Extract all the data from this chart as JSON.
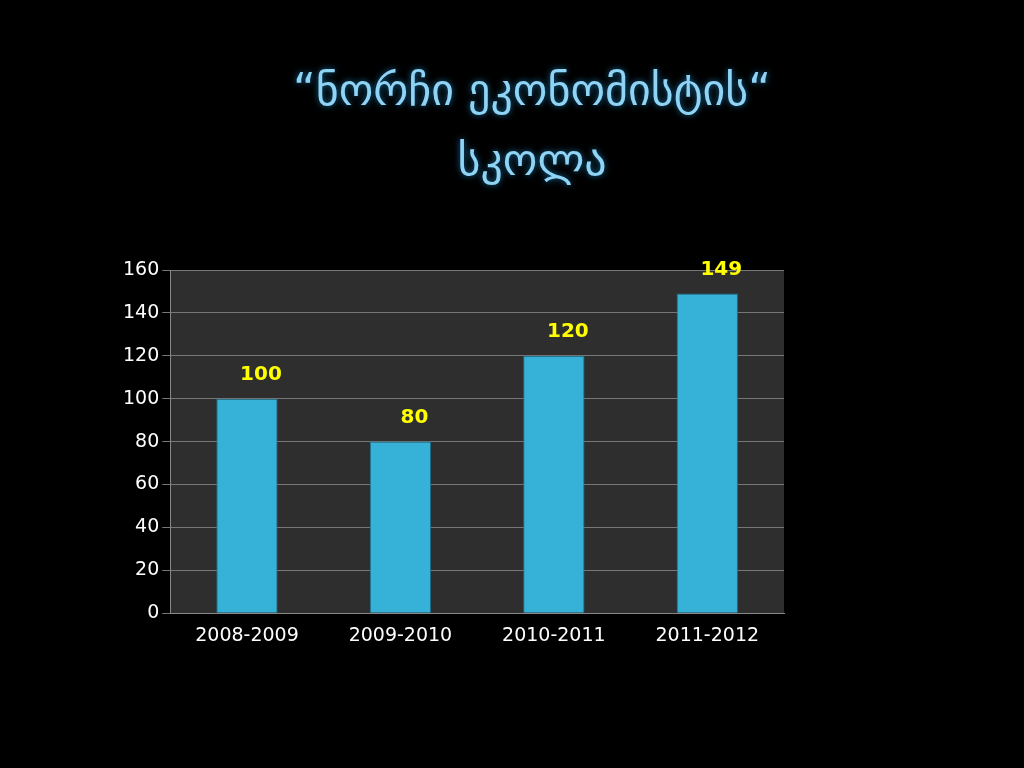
{
  "chart_data": {
    "type": "bar",
    "title": "“ნორჩი ეკონომისტის“ სკოლა",
    "categories": [
      "2008-2009",
      "2009-2010",
      "2010-2011",
      "2011-2012"
    ],
    "values": [
      100,
      80,
      120,
      149
    ],
    "color": "#36b2d8",
    "ylim": [
      0,
      160
    ],
    "yticks": [
      0,
      20,
      40,
      60,
      80,
      100,
      120,
      140,
      160
    ],
    "grid": "y",
    "data_labels": true,
    "legend": false
  }
}
